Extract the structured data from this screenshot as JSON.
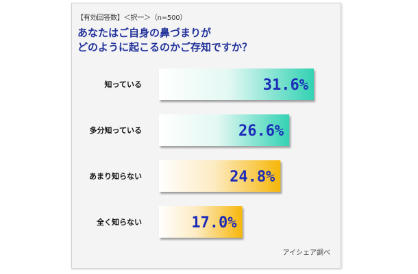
{
  "header": {
    "note": "【有効回答数】＜択一＞（n=500）"
  },
  "title": {
    "line1": "あなたはご自身の鼻づまりが",
    "line2": "どのように起こるのかご存知ですか？"
  },
  "source": "アイシェア調べ",
  "colors": {
    "title": "#23339b",
    "value_text": "#1c2bb8",
    "teal": "#33d2b4",
    "orange": "#f6b70a"
  },
  "chart_data": {
    "type": "bar",
    "orientation": "horizontal",
    "categories": [
      "知っている",
      "多分知っている",
      "あまり知らない",
      "全く知らない"
    ],
    "values": [
      31.6,
      26.6,
      24.8,
      17.0
    ],
    "value_labels": [
      "31.6%",
      "26.6%",
      "24.8%",
      "17.0%"
    ],
    "bar_colors": [
      "teal",
      "teal",
      "orange",
      "orange"
    ],
    "xlim": [
      0,
      100
    ],
    "title": "あなたはご自身の鼻づまりがどのように起こるのかご存知ですか？",
    "xlabel": "",
    "ylabel": "",
    "grid": false
  }
}
